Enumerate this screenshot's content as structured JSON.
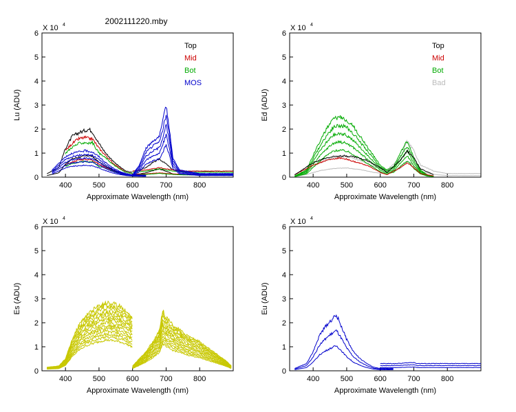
{
  "figure_title": "2002111220.mby",
  "chart_data": [
    {
      "type": "line",
      "ylabel": "Lu (ADU)",
      "xlabel": "Approximate Wavelength (nm)",
      "multiplier": "X 10",
      "multiplier_exp": "4",
      "xlim": [
        330,
        900
      ],
      "ylim": [
        0,
        6
      ],
      "xticks": [
        400,
        500,
        600,
        700,
        800
      ],
      "yticks": [
        0,
        1,
        2,
        3,
        4,
        5,
        6
      ],
      "legend": [
        {
          "name": "Top",
          "color": "#000000"
        },
        {
          "name": "Mid",
          "color": "#cc0000"
        },
        {
          "name": "Bot",
          "color": "#00aa00"
        },
        {
          "name": "MOS",
          "color": "#0000cc"
        }
      ],
      "series": [
        {
          "group": "Top",
          "color": "#000000",
          "n": 2,
          "segments": [
            {
              "x": [
                345,
                380,
                400,
                420,
                440,
                460,
                470,
                480,
                500,
                520,
                540,
                560,
                580,
                600
              ],
              "y": [
                0.15,
                0.4,
                1.2,
                1.7,
                1.85,
                1.95,
                2.0,
                1.9,
                1.4,
                1.0,
                0.7,
                0.45,
                0.25,
                0.2
              ]
            },
            {
              "x": [
                600,
                620,
                640,
                660,
                680,
                700,
                720,
                750,
                800,
                900
              ],
              "y": [
                0.25,
                0.3,
                0.4,
                0.6,
                0.75,
                0.55,
                0.3,
                0.25,
                0.25,
                0.25
              ]
            }
          ]
        },
        {
          "group": "Mid",
          "color": "#cc0000",
          "n": 2,
          "segments": [
            {
              "x": [
                400,
                420,
                440,
                460,
                470,
                480,
                500,
                520,
                540,
                560,
                580,
                600
              ],
              "y": [
                1.1,
                1.4,
                1.6,
                1.65,
                1.6,
                1.6,
                1.2,
                0.9,
                0.6,
                0.4,
                0.2,
                0.15
              ]
            },
            {
              "x": [
                600,
                640,
                660,
                680,
                700,
                720,
                760,
                800,
                900
              ],
              "y": [
                0.25,
                0.3,
                0.35,
                0.4,
                0.35,
                0.3,
                0.25,
                0.25,
                0.25
              ]
            }
          ]
        },
        {
          "group": "Bot",
          "color": "#00aa00",
          "n": 2,
          "segments": [
            {
              "x": [
                400,
                420,
                440,
                460,
                470,
                480,
                500,
                520,
                540,
                560,
                580,
                600
              ],
              "y": [
                1.0,
                1.25,
                1.4,
                1.45,
                1.4,
                1.45,
                1.0,
                0.8,
                0.55,
                0.35,
                0.2,
                0.15
              ]
            },
            {
              "x": [
                600,
                640,
                660,
                680,
                700,
                720,
                760,
                800,
                900
              ],
              "y": [
                0.2,
                0.25,
                0.3,
                0.35,
                0.3,
                0.25,
                0.2,
                0.2,
                0.2
              ]
            }
          ]
        },
        {
          "group": "MOS",
          "color": "#0000cc",
          "n": 5,
          "segments": [
            {
              "x": [
                360,
                400,
                420,
                440,
                460,
                480,
                500,
                520,
                540,
                560,
                580,
                600,
                640
              ],
              "y": [
                0.3,
                0.85,
                1.0,
                1.05,
                1.1,
                1.05,
                0.85,
                0.6,
                0.4,
                0.25,
                0.15,
                0.1,
                0.08
              ]
            },
            {
              "x": [
                600,
                620,
                640,
                660,
                680,
                690,
                700,
                710,
                720,
                740,
                800,
                900
              ],
              "y": [
                0.1,
                0.5,
                1.2,
                1.5,
                1.7,
                2.3,
                3.0,
                2.0,
                0.8,
                0.3,
                0.15,
                0.15
              ]
            }
          ]
        }
      ]
    },
    {
      "type": "line",
      "ylabel": "Ed (ADU)",
      "xlabel": "Approximate Wavelength (nm)",
      "multiplier": "X 10",
      "multiplier_exp": "4",
      "xlim": [
        330,
        900
      ],
      "ylim": [
        0,
        6
      ],
      "xticks": [
        400,
        500,
        600,
        700,
        800
      ],
      "yticks": [
        0,
        1,
        2,
        3,
        4,
        5,
        6
      ],
      "legend": [
        {
          "name": "Top",
          "color": "#000000"
        },
        {
          "name": "Mid",
          "color": "#cc0000"
        },
        {
          "name": "Bot",
          "color": "#00aa00"
        },
        {
          "name": "Bad",
          "color": "#bbbbbb"
        }
      ],
      "series": [
        {
          "group": "Bad",
          "color": "#bbbbbb",
          "n": 2,
          "segments": [
            {
              "x": [
                345,
                380,
                420,
                460,
                500,
                540,
                580,
                620,
                660,
                680,
                700,
                720,
                760,
                800,
                900
              ],
              "y": [
                0.05,
                0.25,
                0.6,
                0.8,
                0.85,
                0.7,
                0.45,
                0.3,
                0.8,
                1.5,
                1.1,
                0.5,
                0.25,
                0.15,
                0.15
              ]
            }
          ]
        },
        {
          "group": "Bot",
          "color": "#00aa00",
          "n": 5,
          "segments": [
            {
              "x": [
                345,
                380,
                400,
                420,
                440,
                460,
                480,
                500,
                520,
                540,
                560,
                580,
                600,
                620,
                640,
                660,
                680,
                690,
                700,
                720,
                740,
                760
              ],
              "y": [
                0.05,
                0.3,
                0.9,
                1.5,
                2.0,
                2.4,
                2.5,
                2.4,
                2.1,
                1.7,
                1.3,
                0.9,
                0.5,
                0.3,
                0.45,
                1.0,
                1.5,
                1.2,
                0.8,
                0.3,
                0.1,
                0.05
              ]
            }
          ]
        },
        {
          "group": "Mid",
          "color": "#cc0000",
          "n": 1,
          "segments": [
            {
              "x": [
                345,
                400,
                440,
                480,
                500,
                520,
                560,
                600,
                620,
                660,
                680,
                700,
                720,
                760
              ],
              "y": [
                0.1,
                0.5,
                0.7,
                0.8,
                0.75,
                0.65,
                0.5,
                0.2,
                0.1,
                0.4,
                0.6,
                0.4,
                0.15,
                0.05
              ]
            }
          ]
        },
        {
          "group": "Top",
          "color": "#000000",
          "n": 1,
          "segments": [
            {
              "x": [
                345,
                400,
                440,
                480,
                520,
                560,
                600,
                620,
                660,
                680,
                700,
                720,
                760
              ],
              "y": [
                0.1,
                0.6,
                0.8,
                0.9,
                0.85,
                0.7,
                0.4,
                0.2,
                0.7,
                1.1,
                0.8,
                0.35,
                0.1
              ]
            }
          ]
        }
      ]
    },
    {
      "type": "line",
      "ylabel": "Es (ADU)",
      "xlabel": "Approximate Wavelength (nm)",
      "multiplier": "X 10",
      "multiplier_exp": "4",
      "xlim": [
        330,
        900
      ],
      "ylim": [
        0,
        6
      ],
      "xticks": [
        400,
        500,
        600,
        700,
        800
      ],
      "yticks": [
        0,
        1,
        2,
        3,
        4,
        5,
        6
      ],
      "legend": [],
      "series": [
        {
          "group": "Es",
          "color": "#c8c800",
          "n": 14,
          "segments": [
            {
              "x": [
                345,
                380,
                400,
                420,
                440,
                460,
                480,
                500,
                520,
                540,
                560,
                580,
                600
              ],
              "y": [
                0.15,
                0.2,
                0.5,
                1.3,
                1.9,
                2.3,
                2.5,
                2.7,
                2.85,
                2.8,
                2.7,
                2.5,
                2.2
              ]
            },
            {
              "x": [
                600,
                620,
                640,
                660,
                680,
                690,
                700,
                720,
                740,
                760,
                780,
                800,
                820,
                840,
                860,
                880,
                895
              ],
              "y": [
                0.2,
                0.5,
                0.8,
                1.2,
                1.7,
                2.5,
                2.2,
                1.9,
                1.7,
                1.5,
                1.35,
                1.2,
                1.0,
                0.8,
                0.6,
                0.4,
                0.2
              ]
            }
          ]
        }
      ]
    },
    {
      "type": "line",
      "ylabel": "Eu (ADU)",
      "xlabel": "Approximate Wavelength (nm)",
      "multiplier": "X 10",
      "multiplier_exp": "4",
      "xlim": [
        330,
        900
      ],
      "ylim": [
        0,
        6
      ],
      "xticks": [
        400,
        500,
        600,
        700,
        800
      ],
      "yticks": [
        0,
        1,
        2,
        3,
        4,
        5,
        6
      ],
      "legend": [],
      "series": [
        {
          "group": "Eu",
          "color": "#0000cc",
          "n": 3,
          "segments": [
            {
              "x": [
                345,
                380,
                400,
                420,
                440,
                460,
                470,
                480,
                500,
                520,
                540,
                560,
                580,
                600,
                640
              ],
              "y": [
                0.1,
                0.3,
                0.8,
                1.5,
                1.9,
                2.2,
                2.3,
                2.0,
                1.3,
                0.8,
                0.5,
                0.3,
                0.15,
                0.1,
                0.1
              ]
            },
            {
              "x": [
                600,
                650,
                700,
                710,
                720,
                760,
                800,
                900
              ],
              "y": [
                0.3,
                0.3,
                0.35,
                0.3,
                0.3,
                0.3,
                0.3,
                0.3
              ]
            }
          ]
        }
      ]
    }
  ]
}
